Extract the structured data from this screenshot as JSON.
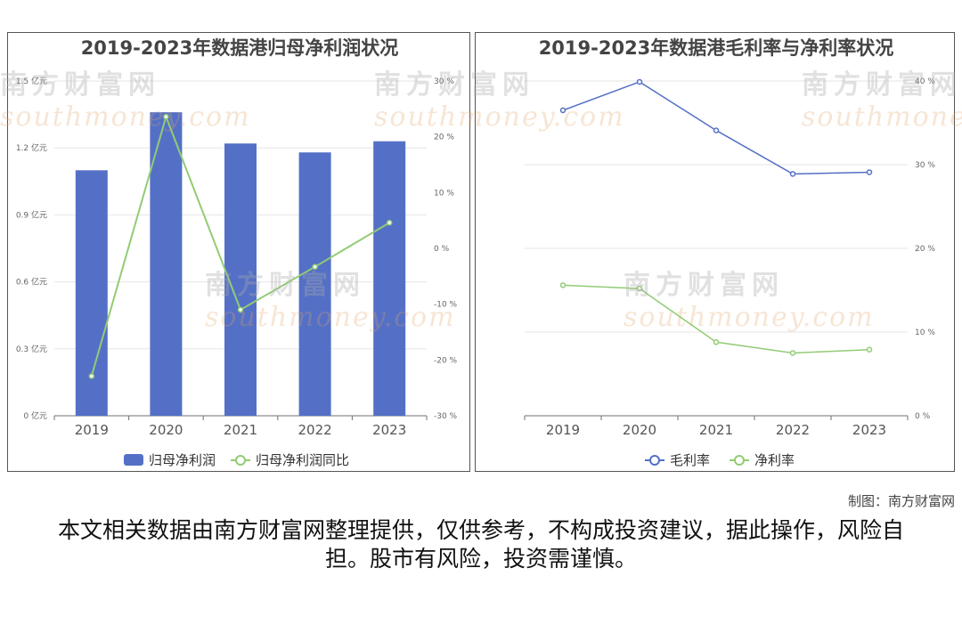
{
  "credit": "制图：南方财富网",
  "disclaimer": "本文相关数据由南方财富网整理提供，仅供参考，不构成投资建议，据此操作，风险自担。股市有风险，投资需谨慎。",
  "watermark": {
    "cn": "南方财富网",
    "en": "southmoney.com"
  },
  "chart_data": [
    {
      "type": "bar",
      "title": "2019-2023年数据港归母净利润状况",
      "categories": [
        "2019",
        "2020",
        "2021",
        "2022",
        "2023"
      ],
      "series": [
        {
          "name": "归母净利润",
          "type": "bar",
          "axis": "left",
          "color": "#5470c6",
          "values": [
            1.1,
            1.36,
            1.22,
            1.18,
            1.23
          ]
        },
        {
          "name": "归母净利润同比",
          "type": "line",
          "axis": "right",
          "color": "#91cc75",
          "values": [
            -22.9,
            23.6,
            -11.0,
            -3.3,
            4.6
          ]
        }
      ],
      "left_axis": {
        "ylim": [
          0,
          1.5
        ],
        "ticks": [
          "0 亿元",
          "0.3 亿元",
          "0.6 亿元",
          "0.9 亿元",
          "1.2 亿元",
          "1.5 亿元"
        ]
      },
      "right_axis": {
        "ylim": [
          -30,
          30
        ],
        "ticks": [
          "-30 %",
          "-20 %",
          "-10 %",
          "0 %",
          "10 %",
          "20 %",
          "30 %"
        ]
      },
      "legend": "bottom-center",
      "grid": true
    },
    {
      "type": "line",
      "title": "2019-2023年数据港毛利率与净利率状况",
      "categories": [
        "2019",
        "2020",
        "2021",
        "2022",
        "2023"
      ],
      "series": [
        {
          "name": "毛利率",
          "color": "#5470c6",
          "values": [
            36.5,
            39.9,
            34.1,
            28.9,
            29.1
          ]
        },
        {
          "name": "净利率",
          "color": "#91cc75",
          "values": [
            15.6,
            15.2,
            8.8,
            7.5,
            7.9
          ]
        }
      ],
      "right_axis": {
        "ylim": [
          0,
          40
        ],
        "ticks": [
          "0 %",
          "10 %",
          "20 %",
          "30 %",
          "40 %"
        ]
      },
      "legend": "bottom-center",
      "grid": true
    }
  ]
}
